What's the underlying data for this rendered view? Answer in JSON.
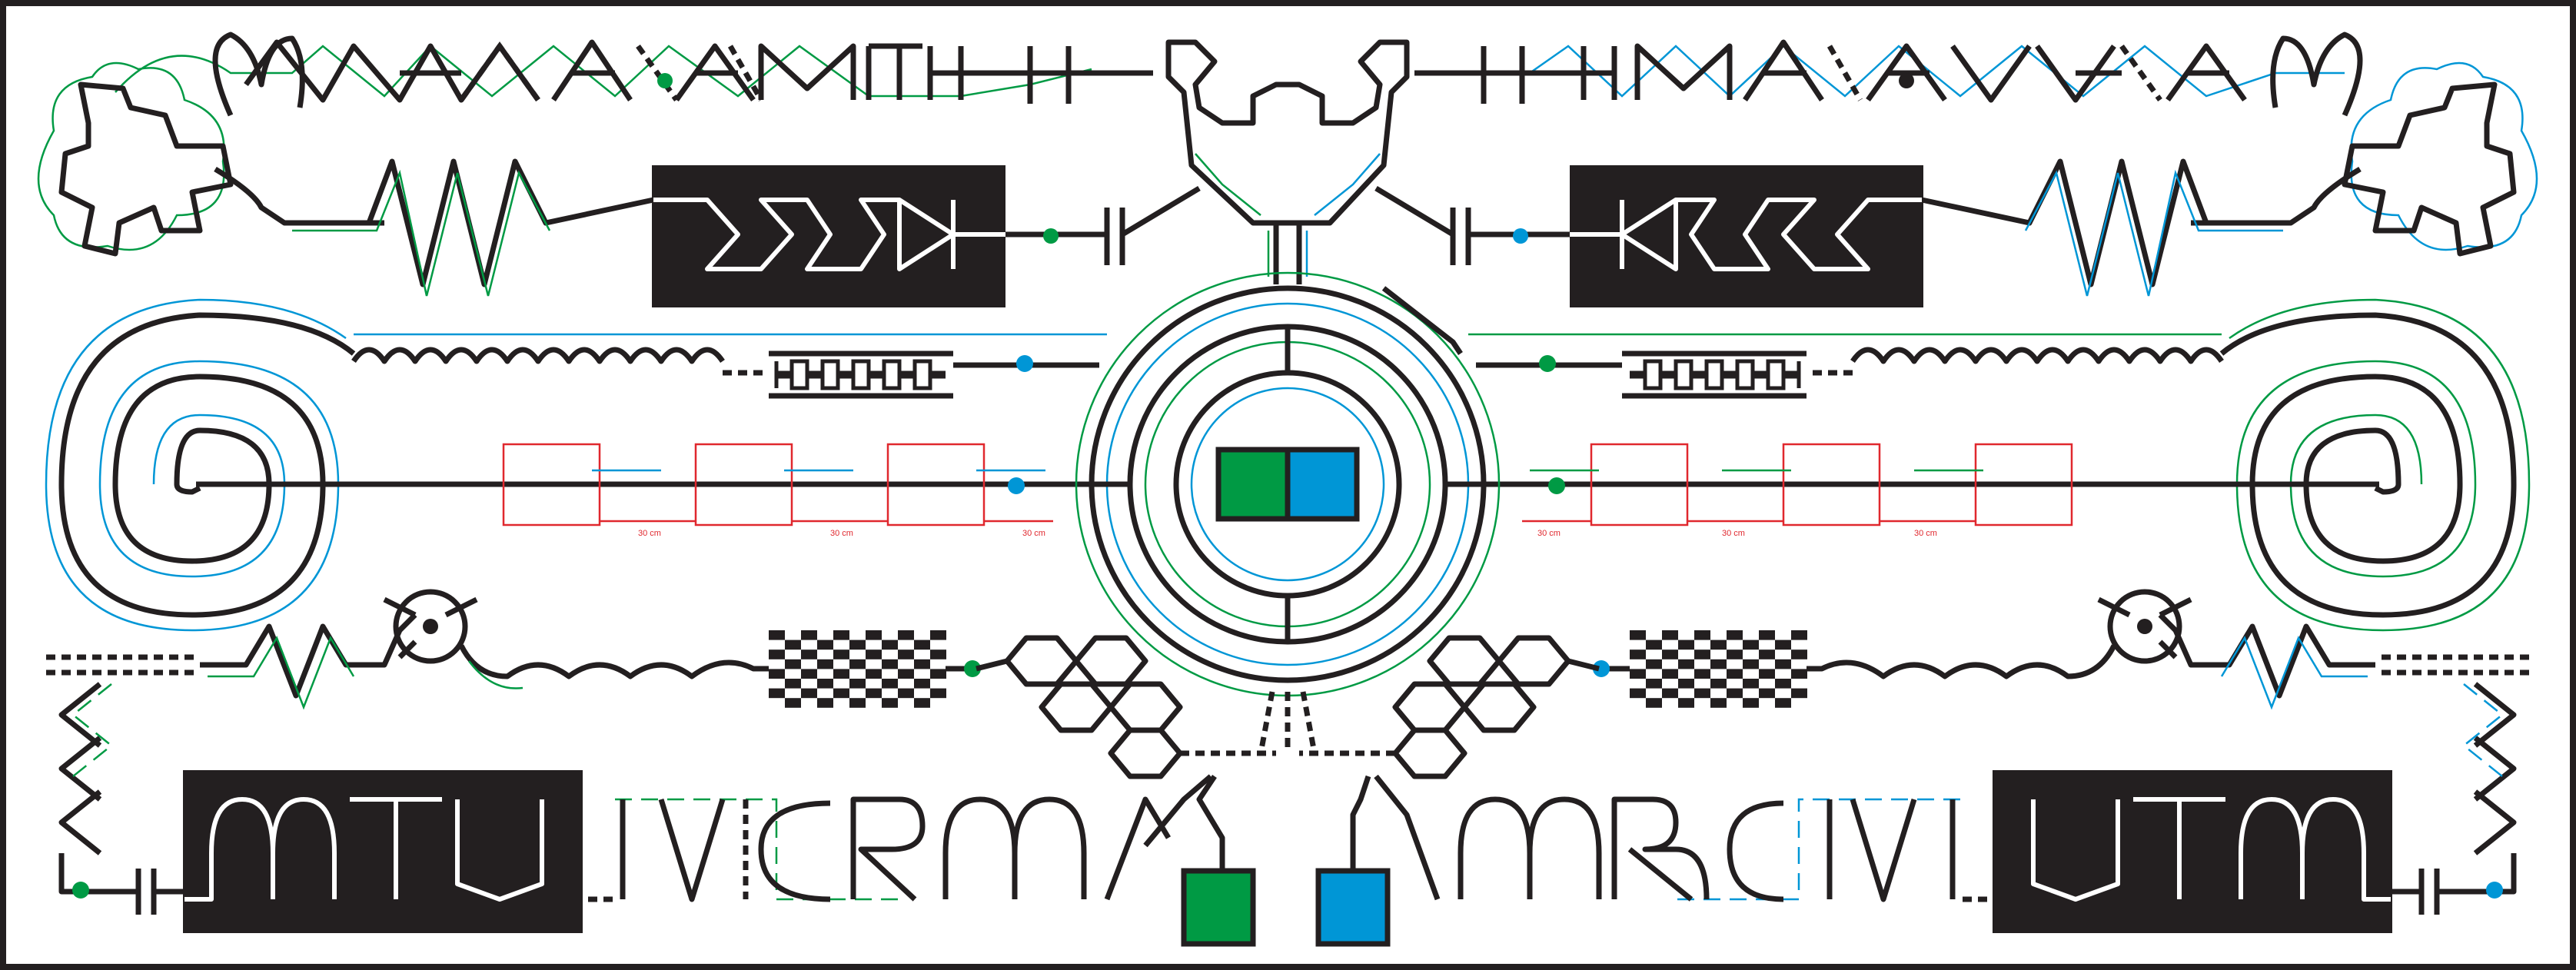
{
  "diagram": {
    "colors": {
      "wire": "#231f20",
      "green_path": "#009a44",
      "blue_path": "#0096d6",
      "measure": "#e0282e",
      "panel": "#231f20",
      "background": "#ffffff"
    },
    "spacing_labels": {
      "left_1": "30 cm",
      "left_2": "30 cm",
      "left_3": "30 cm",
      "right_1": "30 cm",
      "right_2": "30 cm",
      "right_3": "30 cm"
    },
    "icons": [
      "circular-target-icon",
      "green-terminal-icon",
      "blue-terminal-icon",
      "spiral-coil-icon",
      "inductor-coil-icon",
      "zigzag-resistor-icon",
      "capacitor-icon",
      "diode-icon",
      "checkerboard-icon",
      "hexagon-lattice-icon"
    ]
  }
}
